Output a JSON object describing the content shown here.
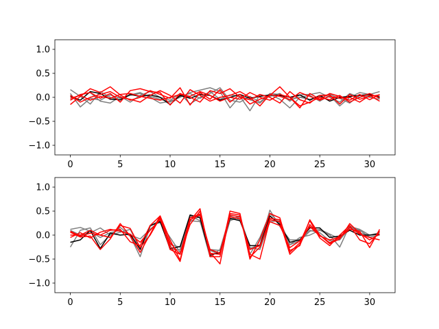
{
  "chart_data": [
    {
      "type": "line",
      "x": [
        0,
        1,
        2,
        3,
        4,
        5,
        6,
        7,
        8,
        9,
        10,
        11,
        12,
        13,
        14,
        15,
        16,
        17,
        18,
        19,
        20,
        21,
        22,
        23,
        24,
        25,
        26,
        27,
        28,
        29,
        30,
        31
      ],
      "xlim": [
        -1.55,
        32.55
      ],
      "ylim": [
        -1.2,
        1.2
      ],
      "xticks": [
        0,
        5,
        10,
        15,
        20,
        25,
        30
      ],
      "yticks": [
        -1.0,
        -0.5,
        0.0,
        0.5,
        1.0
      ],
      "xtick_labels": [
        "0",
        "5",
        "10",
        "15",
        "20",
        "25",
        "30"
      ],
      "ytick_labels": [
        "−1.0",
        "−0.5",
        "0.0",
        "0.5",
        "1.0"
      ],
      "colors": {
        "black": "#000000",
        "gray": "#7f7f7f",
        "red": "#ff0000"
      },
      "series": [
        {
          "color": "#7f7f7f",
          "values": [
            0.16,
            0.02,
            -0.14,
            0.12,
            0.0,
            -0.06,
            0.05,
            0.1,
            0.0,
            -0.12,
            -0.08,
            0.0,
            0.1,
            0.15,
            0.2,
            0.12,
            -0.22,
            0.02,
            -0.28,
            0.05,
            0.02,
            0.08,
            -0.08,
            0.05,
            0.06,
            0.1,
            0.0,
            -0.1,
            0.08,
            0.0,
            0.05,
            0.02
          ]
        },
        {
          "color": "#7f7f7f",
          "values": [
            0.08,
            -0.2,
            -0.02,
            -0.06,
            0.05,
            -0.02,
            0.04,
            0.08,
            0.02,
            -0.04,
            -0.1,
            0.02,
            0.08,
            -0.02,
            0.08,
            0.2,
            -0.06,
            -0.1,
            0.02,
            -0.1,
            0.08,
            0.06,
            -0.05,
            0.0,
            -0.04,
            0.02,
            0.06,
            -0.02,
            -0.12,
            0.05,
            0.0,
            -0.04
          ]
        },
        {
          "color": "#7f7f7f",
          "values": [
            -0.05,
            0.05,
            0.1,
            -0.08,
            -0.12,
            0.02,
            -0.1,
            0.04,
            0.12,
            0.0,
            -0.06,
            0.08,
            -0.14,
            0.0,
            0.12,
            -0.04,
            0.05,
            0.02,
            -0.05,
            -0.12,
            0.06,
            -0.04,
            -0.22,
            0.0,
            0.04,
            -0.08,
            0.04,
            -0.18,
            0.0,
            0.1,
            0.06,
            0.12
          ]
        },
        {
          "color": "#000000",
          "values": [
            0.02,
            -0.06,
            0.12,
            0.08,
            -0.04,
            -0.05,
            0.06,
            0.02,
            0.05,
            0.0,
            -0.15,
            0.04,
            -0.02,
            0.06,
            0.04,
            -0.06,
            0.0,
            0.06,
            -0.02,
            0.02,
            0.05,
            0.04,
            0.0,
            0.05,
            -0.06,
            0.04,
            -0.08,
            0.0,
            0.02,
            0.04,
            0.06,
            0.0
          ]
        },
        {
          "color": "#ff0000",
          "values": [
            -0.15,
            0.02,
            0.18,
            0.1,
            0.22,
            0.05,
            -0.06,
            0.0,
            0.14,
            0.06,
            -0.02,
            0.2,
            -0.16,
            0.1,
            -0.04,
            0.16,
            -0.1,
            0.06,
            -0.14,
            -0.04,
            0.04,
            0.22,
            0.0,
            -0.18,
            -0.1,
            0.0,
            -0.05,
            0.04,
            -0.1,
            0.0,
            0.08,
            -0.02
          ]
        },
        {
          "color": "#ff0000",
          "values": [
            -0.06,
            0.06,
            0.1,
            -0.02,
            0.08,
            -0.1,
            0.14,
            0.18,
            0.12,
            0.1,
            -0.16,
            0.08,
            0.0,
            -0.1,
            0.14,
            0.08,
            0.18,
            0.0,
            -0.05,
            0.06,
            0.0,
            -0.12,
            0.12,
            -0.05,
            -0.12,
            0.04,
            0.05,
            -0.14,
            0.06,
            -0.04,
            0.02,
            0.05
          ]
        },
        {
          "color": "#ff0000",
          "values": [
            0.04,
            -0.1,
            0.0,
            0.06,
            0.12,
            0.0,
            -0.04,
            -0.1,
            0.04,
            0.14,
            0.04,
            -0.12,
            0.16,
            0.04,
            -0.08,
            0.0,
            0.04,
            0.12,
            0.0,
            -0.18,
            0.06,
            0.02,
            -0.05,
            0.1,
            0.02,
            -0.06,
            0.02,
            -0.02,
            0.0,
            -0.1,
            0.04,
            -0.08
          ]
        },
        {
          "color": "#ff0000",
          "values": [
            -0.02,
            0.04,
            -0.06,
            0.02,
            -0.02,
            0.06,
            0.08,
            0.02,
            -0.02,
            -0.06,
            0.0,
            0.06,
            0.02,
            0.12,
            0.04,
            -0.08,
            0.0,
            -0.04,
            0.1,
            0.0,
            -0.06,
            0.06,
            0.0,
            -0.22,
            0.08,
            -0.04,
            0.08,
            0.02,
            -0.06,
            0.06,
            -0.05,
            0.06
          ]
        }
      ]
    },
    {
      "type": "line",
      "x": [
        0,
        1,
        2,
        3,
        4,
        5,
        6,
        7,
        8,
        9,
        10,
        11,
        12,
        13,
        14,
        15,
        16,
        17,
        18,
        19,
        20,
        21,
        22,
        23,
        24,
        25,
        26,
        27,
        28,
        29,
        30,
        31
      ],
      "xlim": [
        -1.55,
        32.55
      ],
      "ylim": [
        -1.2,
        1.2
      ],
      "xticks": [
        0,
        5,
        10,
        15,
        20,
        25,
        30
      ],
      "yticks": [
        -1.0,
        -0.5,
        0.0,
        0.5,
        1.0
      ],
      "xtick_labels": [
        "0",
        "5",
        "10",
        "15",
        "20",
        "25",
        "30"
      ],
      "ytick_labels": [
        "−1.0",
        "−0.5",
        "0.0",
        "0.5",
        "1.0"
      ],
      "colors": {
        "black": "#000000",
        "gray": "#7f7f7f",
        "red": "#ff0000"
      },
      "series": [
        {
          "color": "#7f7f7f",
          "values": [
            0.12,
            0.16,
            0.08,
            -0.05,
            0.05,
            0.1,
            -0.02,
            -0.45,
            0.18,
            0.32,
            -0.3,
            -0.3,
            0.4,
            0.3,
            -0.45,
            -0.3,
            0.4,
            0.32,
            -0.28,
            -0.2,
            0.52,
            0.18,
            -0.1,
            -0.1,
            0.1,
            0.05,
            -0.12,
            -0.1,
            0.15,
            0.1,
            -0.04,
            0.0
          ]
        },
        {
          "color": "#7f7f7f",
          "values": [
            -0.25,
            0.1,
            0.15,
            -0.2,
            0.0,
            0.16,
            0.0,
            -0.08,
            0.12,
            0.3,
            -0.2,
            -0.25,
            0.28,
            0.4,
            -0.3,
            -0.32,
            0.32,
            0.4,
            -0.4,
            -0.05,
            0.45,
            0.25,
            -0.2,
            -0.05,
            0.0,
            0.1,
            0.0,
            -0.25,
            0.2,
            0.04,
            0.0,
            0.05
          ]
        },
        {
          "color": "#7f7f7f",
          "values": [
            0.1,
            0.0,
            0.05,
            0.15,
            0.0,
            0.06,
            0.12,
            -0.3,
            0.2,
            0.26,
            -0.05,
            -0.36,
            0.3,
            0.28,
            -0.32,
            -0.4,
            0.3,
            0.38,
            -0.26,
            -0.3,
            0.28,
            0.3,
            -0.2,
            -0.12,
            0.08,
            0.12,
            0.02,
            -0.08,
            0.18,
            0.12,
            0.0,
            0.02
          ]
        },
        {
          "color": "#000000",
          "values": [
            -0.15,
            -0.1,
            0.1,
            -0.28,
            0.04,
            0.0,
            0.02,
            -0.3,
            0.2,
            0.28,
            -0.28,
            -0.24,
            0.42,
            0.36,
            -0.42,
            -0.36,
            0.35,
            0.3,
            -0.22,
            -0.22,
            0.4,
            0.22,
            -0.15,
            -0.1,
            0.15,
            0.15,
            -0.05,
            -0.02,
            0.1,
            0.0,
            0.0,
            0.02
          ]
        },
        {
          "color": "#ff0000",
          "values": [
            0.06,
            -0.04,
            -0.02,
            -0.3,
            -0.08,
            0.24,
            -0.02,
            -0.36,
            0.02,
            0.4,
            -0.22,
            -0.55,
            0.3,
            0.55,
            -0.45,
            -0.45,
            0.5,
            0.45,
            -0.5,
            -0.1,
            0.45,
            0.36,
            -0.36,
            -0.16,
            0.3,
            -0.06,
            -0.22,
            0.0,
            0.2,
            -0.1,
            -0.18,
            0.08
          ]
        },
        {
          "color": "#ff0000",
          "values": [
            0.0,
            0.0,
            0.1,
            0.0,
            -0.05,
            0.2,
            0.14,
            -0.26,
            0.0,
            0.36,
            -0.3,
            -0.4,
            0.22,
            0.5,
            -0.36,
            -0.6,
            0.45,
            0.42,
            -0.46,
            -0.25,
            0.35,
            0.32,
            -0.32,
            -0.22,
            0.32,
            0.0,
            -0.16,
            -0.05,
            0.12,
            0.08,
            -0.26,
            0.12
          ]
        },
        {
          "color": "#ff0000",
          "values": [
            0.08,
            -0.02,
            0.04,
            0.0,
            0.1,
            0.12,
            -0.14,
            -0.22,
            0.2,
            0.4,
            -0.1,
            -0.52,
            0.32,
            0.42,
            -0.3,
            -0.38,
            0.42,
            0.38,
            -0.4,
            -0.5,
            0.32,
            0.28,
            -0.4,
            -0.2,
            0.22,
            0.0,
            -0.18,
            -0.08,
            0.24,
            0.04,
            -0.1,
            0.02
          ]
        },
        {
          "color": "#ff0000",
          "values": [
            -0.05,
            0.05,
            -0.06,
            0.06,
            0.12,
            0.08,
            0.02,
            -0.15,
            0.1,
            0.32,
            -0.16,
            -0.4,
            0.36,
            0.44,
            -0.38,
            -0.4,
            0.38,
            0.34,
            -0.3,
            -0.22,
            0.28,
            0.2,
            -0.26,
            -0.12,
            0.18,
            -0.02,
            -0.1,
            -0.04,
            0.16,
            0.02,
            -0.05,
            -0.1
          ]
        }
      ]
    }
  ]
}
